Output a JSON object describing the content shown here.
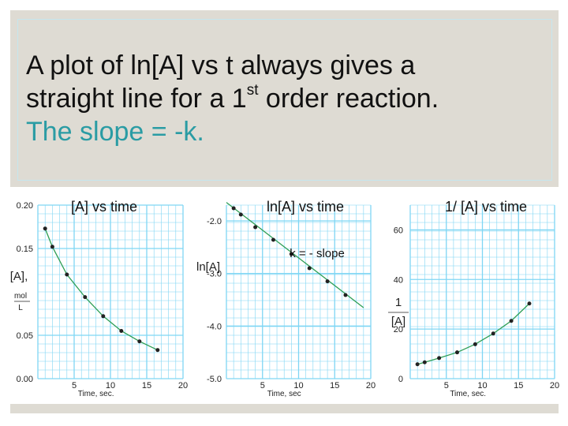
{
  "heading": {
    "line1": "A plot of ln[A] vs t always gives a",
    "line2_pre": "straight line for a 1",
    "line2_sup": "st",
    "line2_post": " order reaction.",
    "line3": "The slope = -k."
  },
  "colors": {
    "accent_text": "#2a9ca4",
    "line": "#2e9e55",
    "grid": "#7fd6f4",
    "marker": "#222222",
    "panel": "#dedbd3"
  },
  "chart_data": [
    {
      "type": "line",
      "title": "[A]  vs time",
      "xlabel": "Time, sec.",
      "ylabel_lines": [
        "[A],",
        "mol",
        "L"
      ],
      "xlim": [
        0,
        20
      ],
      "ylim": [
        0,
        0.2
      ],
      "xticks": [
        5,
        10,
        15,
        20
      ],
      "yticks": [
        0.0,
        0.05,
        0.15,
        0.2
      ],
      "ytick_labels": [
        "0.00",
        "0.05",
        "0.15",
        "0.20"
      ],
      "grid": true,
      "points": {
        "x": [
          1,
          2,
          4,
          6.5,
          9,
          11.5,
          14,
          16.5
        ],
        "y": [
          0.173,
          0.152,
          0.12,
          0.094,
          0.072,
          0.055,
          0.043,
          0.033
        ]
      }
    },
    {
      "type": "line",
      "title": "ln[A] vs time",
      "xlabel": "Time, sec",
      "ylabel": "ln[A]",
      "annotation": "k = - slope",
      "xlim": [
        0,
        20
      ],
      "ylim": [
        -5.0,
        -1.7
      ],
      "xticks": [
        5,
        10,
        15,
        20
      ],
      "yticks": [
        -2.0,
        -3.0,
        -4.0,
        -5.0
      ],
      "ytick_labels": [
        "-2.0",
        "-3.0",
        "-4.0",
        "-5.0"
      ],
      "grid": true,
      "points": {
        "x": [
          1,
          2,
          4,
          6.5,
          9,
          11.5,
          14,
          16.5
        ],
        "y": [
          -1.76,
          -1.88,
          -2.12,
          -2.36,
          -2.63,
          -2.9,
          -3.15,
          -3.41
        ]
      },
      "fit_line": {
        "x": [
          0,
          19
        ],
        "y": [
          -1.65,
          -3.65
        ]
      }
    },
    {
      "type": "line",
      "title": "1/ [A] vs time",
      "xlabel": "Time, sec.",
      "ylabel_lines": [
        "1",
        "[A]"
      ],
      "xlim": [
        0,
        20
      ],
      "ylim": [
        0,
        70
      ],
      "xticks": [
        5,
        10,
        15,
        20
      ],
      "yticks": [
        0,
        20,
        40,
        60
      ],
      "ytick_labels": [
        "0",
        "20",
        "40",
        "60"
      ],
      "grid": true,
      "points": {
        "x": [
          1,
          2,
          4,
          6.5,
          9,
          11.5,
          14,
          16.5
        ],
        "y": [
          5.8,
          6.6,
          8.3,
          10.6,
          13.9,
          18.2,
          23.3,
          30.3
        ]
      }
    }
  ]
}
